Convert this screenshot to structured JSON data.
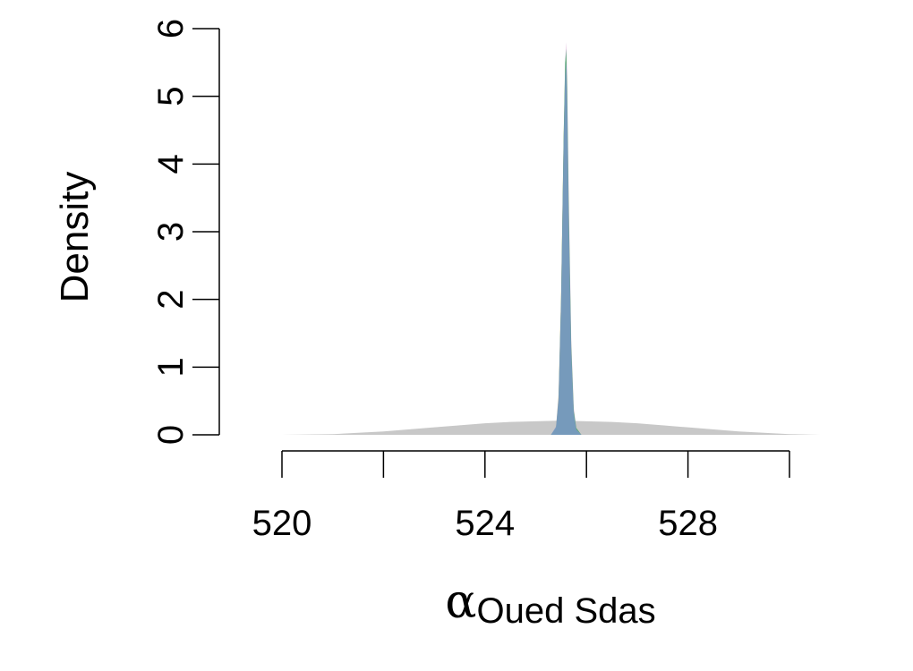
{
  "chart_data": {
    "type": "area",
    "xlabel_symbol": "α",
    "xlabel_subscript": "Oued Sdas",
    "ylabel": "Density",
    "xlim": [
      518.1,
      531.2
    ],
    "ylim": [
      0,
      6
    ],
    "x_ticks": [
      520,
      522,
      524,
      526,
      528,
      530
    ],
    "x_tick_labels": [
      "520",
      "",
      "524",
      "",
      "528",
      ""
    ],
    "y_ticks": [
      0,
      1,
      2,
      3,
      4,
      5,
      6
    ],
    "y_tick_labels": [
      "0",
      "1",
      "2",
      "3",
      "4",
      "5",
      "6"
    ],
    "prior": {
      "color": "#c8c8c8",
      "x": [
        520.0,
        521.0,
        522.0,
        523.0,
        523.5,
        524.0,
        524.5,
        525.0,
        525.5,
        526.0,
        526.5,
        527.0,
        527.5,
        528.0,
        529.0,
        530.0,
        530.6
      ],
      "y": [
        0.0,
        0.01,
        0.05,
        0.11,
        0.14,
        0.17,
        0.19,
        0.2,
        0.21,
        0.2,
        0.19,
        0.17,
        0.14,
        0.11,
        0.05,
        0.01,
        0.0
      ]
    },
    "series": [
      {
        "color": "#d7a9d3",
        "x": [
          525.3,
          525.4,
          525.45,
          525.5,
          525.55,
          525.58,
          525.6,
          525.62,
          525.65,
          525.7,
          525.75,
          525.8,
          525.9
        ],
        "y": [
          0,
          0.1,
          0.5,
          1.9,
          4.3,
          5.5,
          5.8,
          5.3,
          3.6,
          1.4,
          0.4,
          0.1,
          0
        ]
      },
      {
        "color": "#e0c27a",
        "x": [
          525.3,
          525.4,
          525.45,
          525.5,
          525.55,
          525.58,
          525.6,
          525.62,
          525.65,
          525.7,
          525.75,
          525.8,
          525.9
        ],
        "y": [
          0,
          0.1,
          0.6,
          2.1,
          4.4,
          5.4,
          5.6,
          5.0,
          3.3,
          1.2,
          0.3,
          0.1,
          0
        ]
      },
      {
        "color": "#3fa96e",
        "x": [
          525.3,
          525.4,
          525.45,
          525.5,
          525.55,
          525.58,
          525.6,
          525.62,
          525.65,
          525.7,
          525.75,
          525.8,
          525.9
        ],
        "y": [
          0,
          0.1,
          0.5,
          2.0,
          4.4,
          5.5,
          5.7,
          5.1,
          3.4,
          1.3,
          0.35,
          0.1,
          0
        ]
      },
      {
        "color": "#7b96c8",
        "x": [
          525.3,
          525.4,
          525.45,
          525.5,
          525.55,
          525.58,
          525.6,
          525.62,
          525.65,
          525.7,
          525.75,
          525.8,
          525.9
        ],
        "y": [
          0,
          0.12,
          0.55,
          2.0,
          4.3,
          5.3,
          5.5,
          4.9,
          3.2,
          1.2,
          0.3,
          0.08,
          0
        ]
      }
    ]
  }
}
